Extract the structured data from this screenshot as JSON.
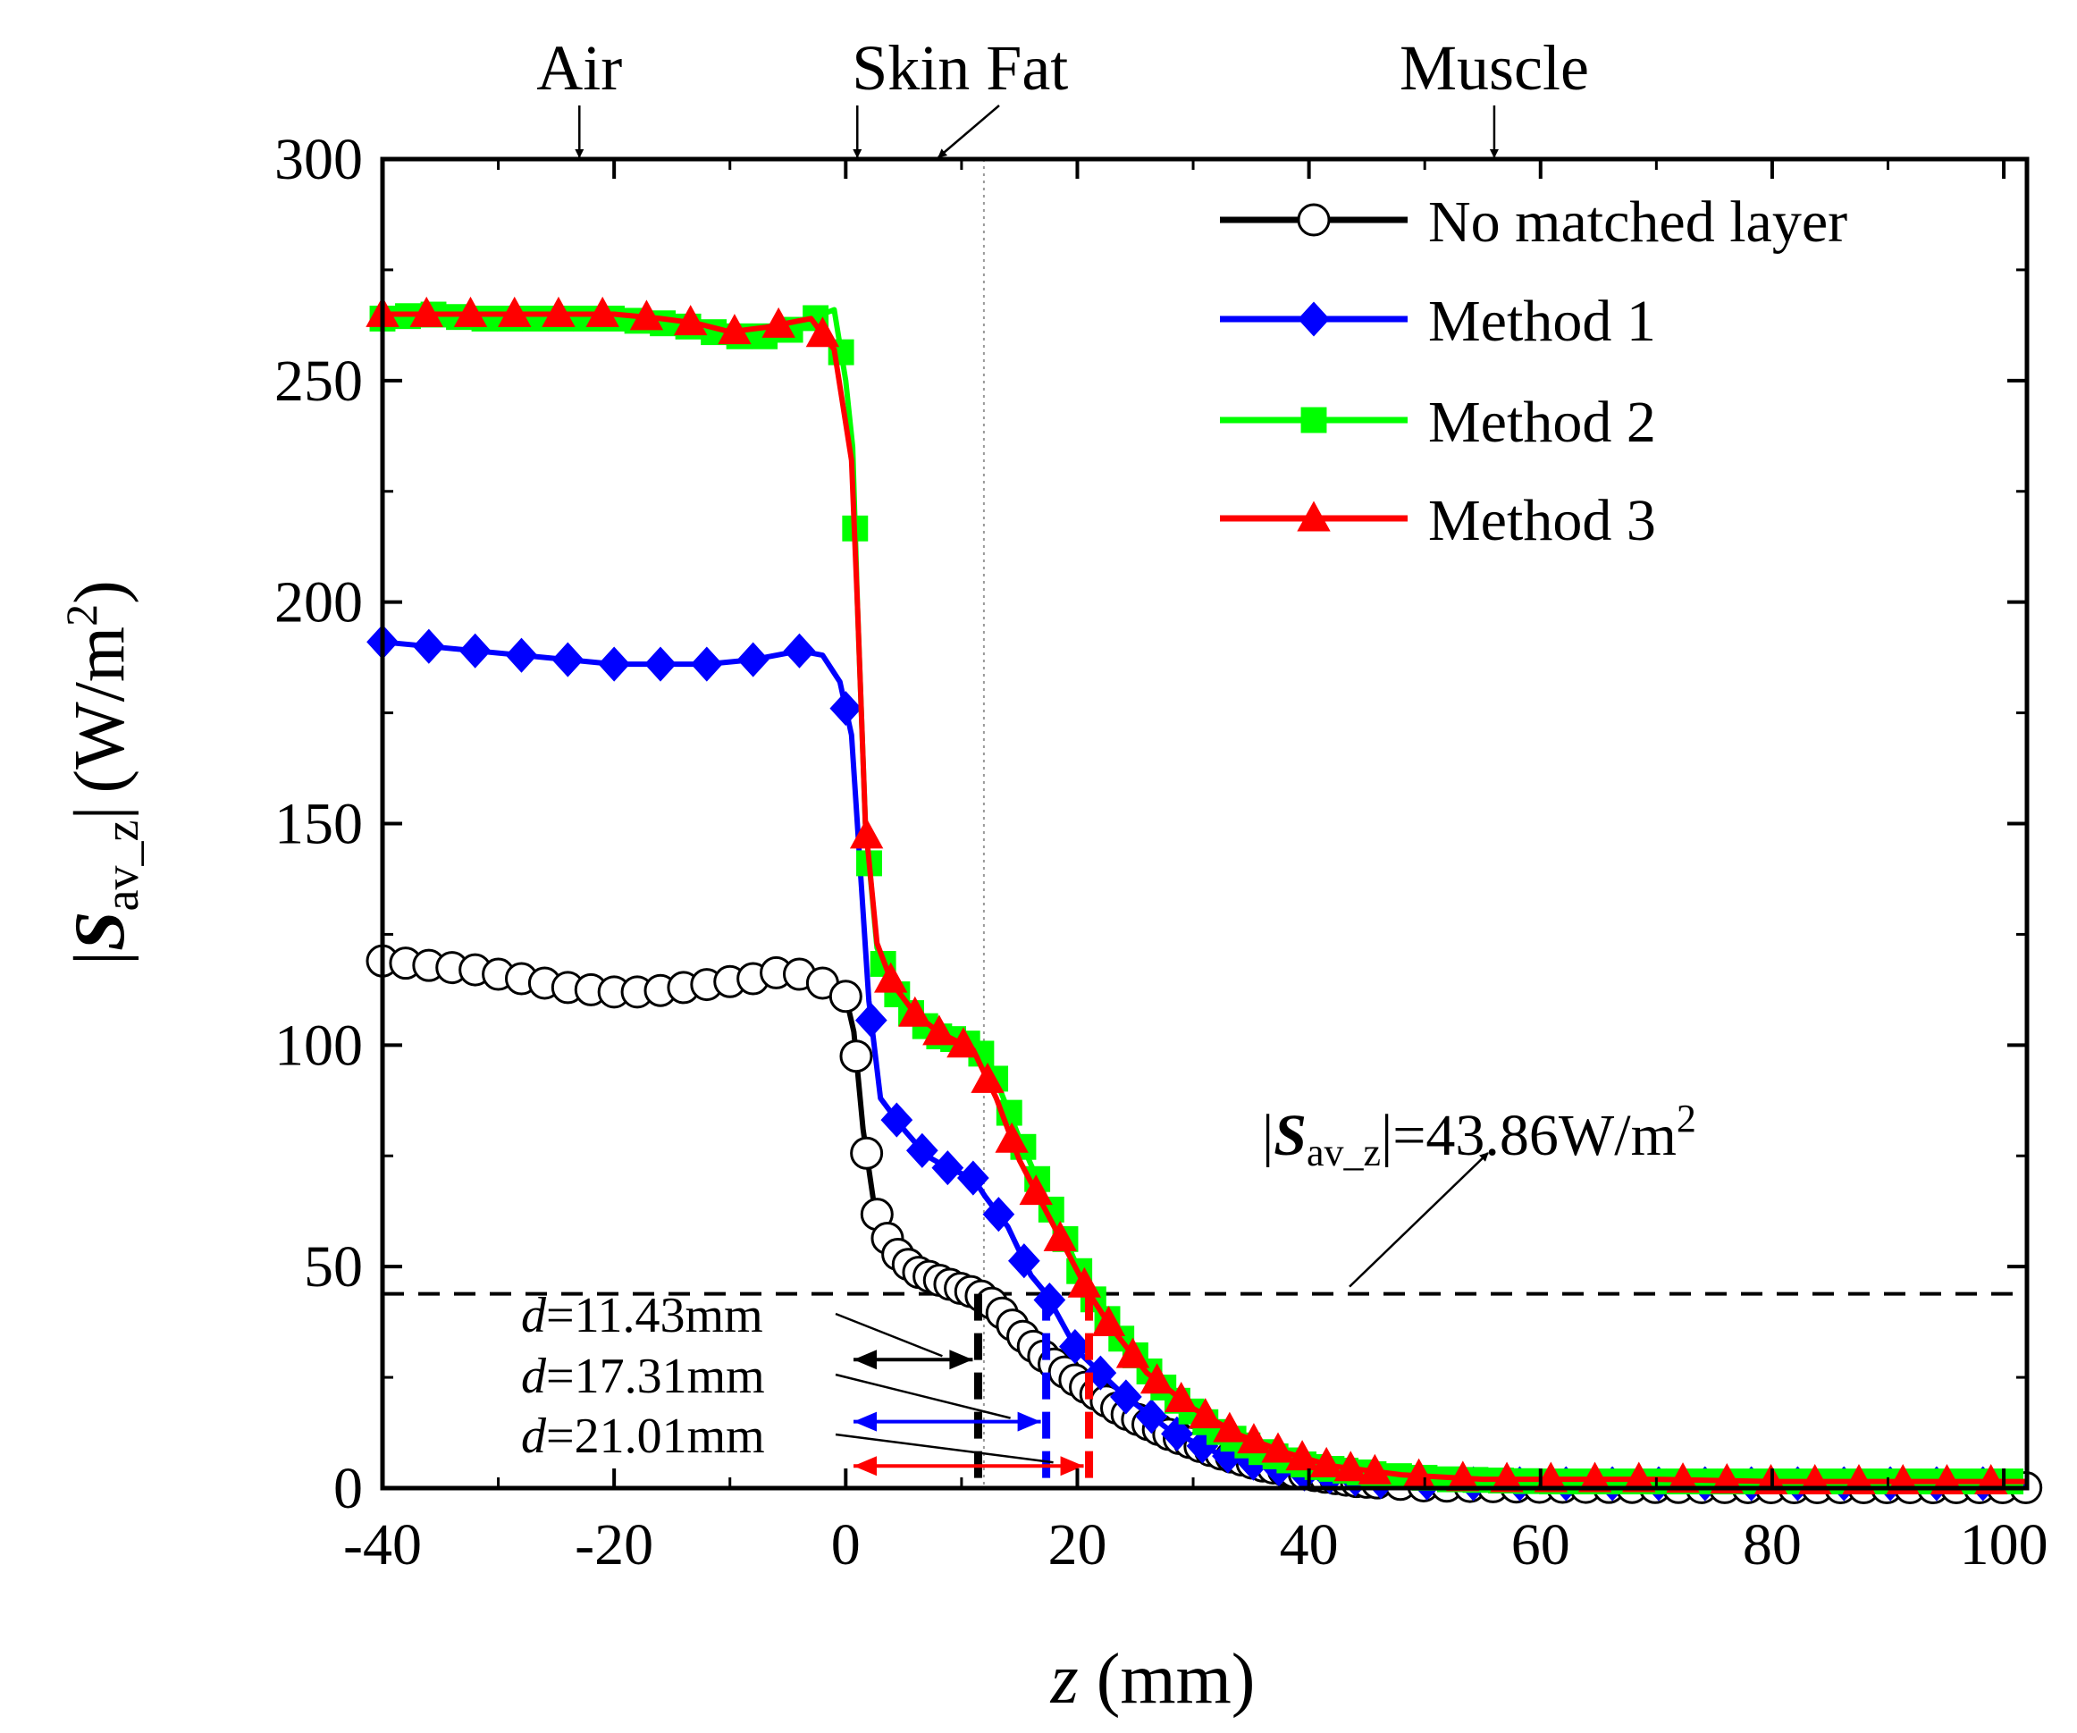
{
  "chart_data": {
    "type": "line",
    "title": "",
    "xlabel": {
      "var": "z",
      "unit": "(mm)"
    },
    "ylabel": {
      "bar_open": "|",
      "sym": "S",
      "sub": "av_z",
      "bar_close": "|",
      "unit": "(W/m",
      "sup": "2",
      "close": ")"
    },
    "xlim": [
      -40,
      102
    ],
    "ylim": [
      0,
      300
    ],
    "xticks": [
      -40,
      -20,
      0,
      20,
      40,
      60,
      80,
      100
    ],
    "yticks": [
      0,
      50,
      100,
      150,
      200,
      250,
      300
    ],
    "region_labels": [
      {
        "text": "Air",
        "z": -23
      },
      {
        "text": "Skin Fat",
        "z": 1
      },
      {
        "text": "Muscle",
        "z": 56
      }
    ],
    "threshold": {
      "value": 43.86,
      "label_bar_open": "|",
      "label_sym": "S",
      "label_sub": "av_z",
      "label_value": "|=43.86W/m",
      "label_sup": "2"
    },
    "depth_markers": [
      {
        "var": "d",
        "value": "=11.43mm",
        "z": 11.43,
        "color": "#000000",
        "y_arrow": 29
      },
      {
        "var": "d",
        "value": "=17.31mm",
        "z": 17.31,
        "color": "#0000ff",
        "y_arrow": 15
      },
      {
        "var": "d",
        "value": "=21.01mm",
        "z": 21.01,
        "color": "#ff0000",
        "y_arrow": 5
      }
    ],
    "series": [
      {
        "name": "No matched layer",
        "color": "#000000",
        "marker": "circle-open",
        "points": [
          [
            -40,
            119
          ],
          [
            -36,
            118
          ],
          [
            -32,
            117
          ],
          [
            -28,
            115
          ],
          [
            -24,
            113
          ],
          [
            -20,
            112
          ],
          [
            -17,
            112
          ],
          [
            -14,
            113
          ],
          [
            -11,
            114
          ],
          [
            -8,
            115
          ],
          [
            -5,
            117
          ],
          [
            -2,
            114
          ],
          [
            0,
            111
          ],
          [
            0.7,
            103
          ],
          [
            1.5,
            81
          ],
          [
            2.5,
            63
          ],
          [
            4,
            54
          ],
          [
            6,
            49
          ],
          [
            8,
            47
          ],
          [
            10,
            45
          ],
          [
            11.4,
            43.9
          ],
          [
            13,
            41
          ],
          [
            15,
            35
          ],
          [
            17,
            30
          ],
          [
            20,
            24
          ],
          [
            24,
            17
          ],
          [
            28,
            12
          ],
          [
            32,
            8
          ],
          [
            36,
            5
          ],
          [
            40,
            3
          ],
          [
            44,
            1.5
          ],
          [
            50,
            0.5
          ],
          [
            60,
            0.2
          ],
          [
            80,
            0.1
          ],
          [
            102,
            0.1
          ]
        ]
      },
      {
        "name": "Method 1",
        "color": "#0000ff",
        "marker": "diamond",
        "points": [
          [
            -40,
            191
          ],
          [
            -36,
            190
          ],
          [
            -32,
            189
          ],
          [
            -28,
            188
          ],
          [
            -24,
            187
          ],
          [
            -20,
            186
          ],
          [
            -16,
            186
          ],
          [
            -12,
            186
          ],
          [
            -8,
            187
          ],
          [
            -4,
            189
          ],
          [
            -2,
            188
          ],
          [
            -0.5,
            182
          ],
          [
            0.5,
            170
          ],
          [
            1,
            150
          ],
          [
            2,
            110
          ],
          [
            3,
            88
          ],
          [
            5,
            81
          ],
          [
            7,
            75
          ],
          [
            9,
            72
          ],
          [
            11,
            70
          ],
          [
            12,
            66
          ],
          [
            14,
            59
          ],
          [
            16,
            48
          ],
          [
            17.3,
            43.9
          ],
          [
            20,
            31
          ],
          [
            24,
            21
          ],
          [
            28,
            13
          ],
          [
            32,
            8
          ],
          [
            36,
            5
          ],
          [
            40,
            3
          ],
          [
            46,
            1.5
          ],
          [
            52,
            1
          ],
          [
            60,
            1
          ],
          [
            80,
            1
          ],
          [
            102,
            1
          ]
        ]
      },
      {
        "name": "Method 2",
        "color": "#00ff00",
        "marker": "square",
        "points": [
          [
            -40,
            264
          ],
          [
            -36,
            265
          ],
          [
            -32,
            264
          ],
          [
            -28,
            264
          ],
          [
            -24,
            264
          ],
          [
            -20,
            264
          ],
          [
            -16,
            263
          ],
          [
            -13,
            262
          ],
          [
            -10,
            260
          ],
          [
            -7,
            260
          ],
          [
            -4,
            262
          ],
          [
            -2,
            265
          ],
          [
            -1,
            266
          ],
          [
            0,
            250
          ],
          [
            0.6,
            235
          ],
          [
            1,
            200
          ],
          [
            1.7,
            150
          ],
          [
            2.7,
            122
          ],
          [
            4,
            113
          ],
          [
            6,
            106
          ],
          [
            8,
            102
          ],
          [
            10,
            101
          ],
          [
            11.5,
            99
          ],
          [
            13,
            92
          ],
          [
            15,
            79
          ],
          [
            17,
            67
          ],
          [
            19,
            56
          ],
          [
            21,
            44
          ],
          [
            24,
            33
          ],
          [
            28,
            21
          ],
          [
            32,
            13
          ],
          [
            36,
            8
          ],
          [
            40,
            5
          ],
          [
            46,
            3
          ],
          [
            52,
            2
          ],
          [
            60,
            1.5
          ],
          [
            70,
            1.5
          ],
          [
            80,
            1.5
          ],
          [
            102,
            1.5
          ]
        ]
      },
      {
        "name": "Method 3",
        "color": "#ff0000",
        "marker": "triangle",
        "points": [
          [
            -40,
            265
          ],
          [
            -36,
            265
          ],
          [
            -32,
            265
          ],
          [
            -28,
            265
          ],
          [
            -24,
            265
          ],
          [
            -20,
            265
          ],
          [
            -16,
            264
          ],
          [
            -13,
            263
          ],
          [
            -10,
            261
          ],
          [
            -7,
            262
          ],
          [
            -3,
            264
          ],
          [
            -1,
            257
          ],
          [
            0.5,
            232
          ],
          [
            1,
            200
          ],
          [
            1.7,
            150
          ],
          [
            2.7,
            123
          ],
          [
            4,
            114
          ],
          [
            6,
            107
          ],
          [
            8,
            103
          ],
          [
            11,
            99
          ],
          [
            13,
            88
          ],
          [
            15,
            74
          ],
          [
            17,
            64
          ],
          [
            19,
            54
          ],
          [
            21,
            44
          ],
          [
            23,
            36
          ],
          [
            26,
            26
          ],
          [
            30,
            18
          ],
          [
            34,
            12
          ],
          [
            38,
            8
          ],
          [
            42,
            5
          ],
          [
            48,
            3
          ],
          [
            55,
            2
          ],
          [
            62,
            2
          ],
          [
            70,
            2
          ],
          [
            80,
            1.5
          ],
          [
            90,
            1.5
          ],
          [
            102,
            1.5
          ]
        ]
      }
    ]
  }
}
